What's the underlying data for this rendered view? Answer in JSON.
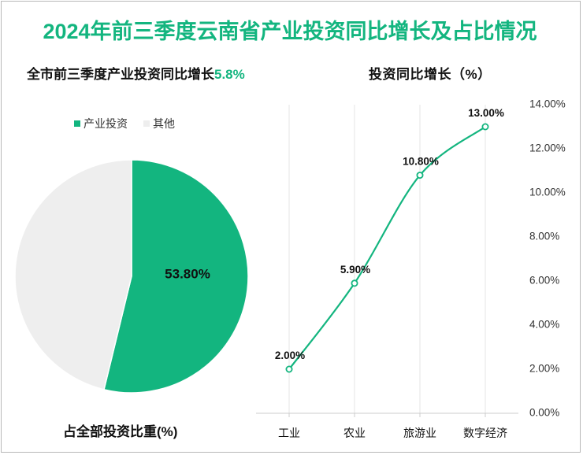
{
  "colors": {
    "accent": "#13b57f",
    "other": "#eeeeee",
    "title": "#13b57f",
    "axis": "#cccccc",
    "text": "#111111"
  },
  "header": {
    "title": "2024年前三季度云南省产业投资同比增长及占比情况"
  },
  "pie_panel": {
    "subtitle_prefix": "全市前三季度产业投资同比增长",
    "subtitle_value": "5.8%",
    "caption": "占全部投资比重(%)"
  },
  "line_panel": {
    "title": "投资同比增长（%）"
  },
  "chart_data": [
    {
      "type": "pie",
      "title": "占全部投资比重(%)",
      "slices": [
        {
          "label": "产业投资",
          "value": 53.8,
          "display": "53.80%",
          "color": "#13b57f"
        },
        {
          "label": "其他",
          "value": 46.2,
          "display": "",
          "color": "#eeeeee"
        }
      ],
      "legend": "top-left",
      "start_angle": "12 o'clock, clockwise"
    },
    {
      "type": "line",
      "title": "投资同比增长（%）",
      "categories": [
        "工业",
        "农业",
        "旅游业",
        "数字经济"
      ],
      "series": [
        {
          "name": "",
          "values": [
            2.0,
            5.9,
            10.8,
            13.0
          ],
          "labels": [
            "2.00%",
            "5.90%",
            "10.80%",
            "13.00%"
          ],
          "color": "#13b57f"
        }
      ],
      "ylim": [
        0,
        14
      ],
      "yticks": [
        "0.00%",
        "2.00%",
        "4.00%",
        "6.00%",
        "8.00%",
        "10.00%",
        "12.00%",
        "14.00%"
      ],
      "y_axis_position": "right",
      "grid": "vertical lines at categories",
      "smooth": true
    }
  ]
}
